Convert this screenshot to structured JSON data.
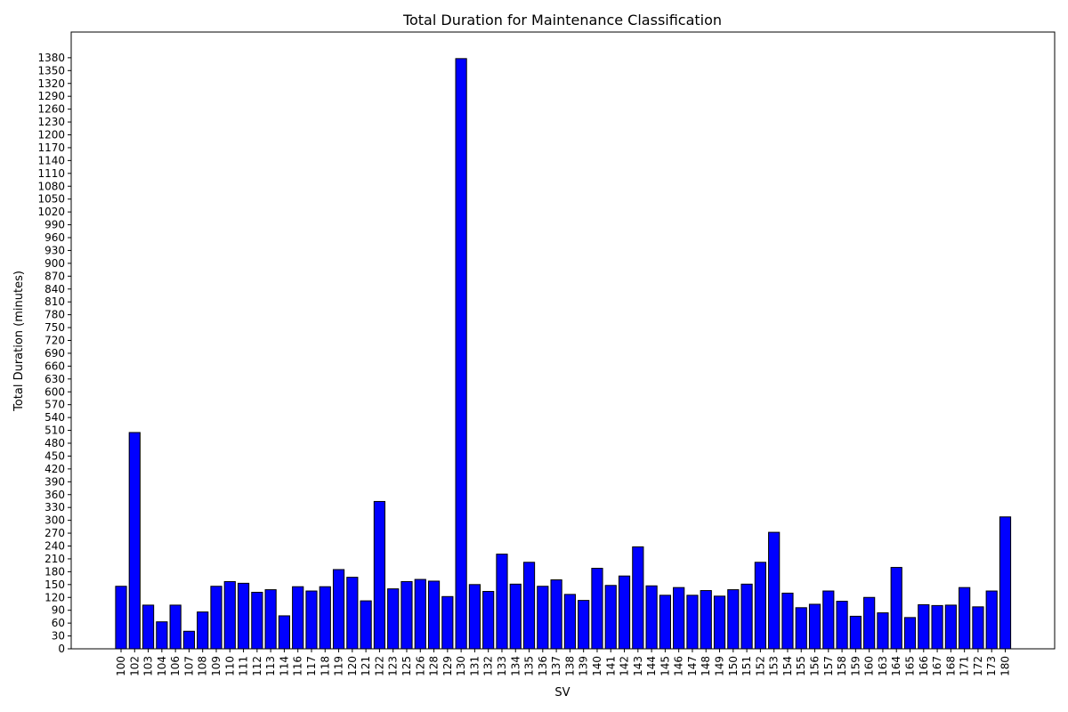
{
  "chart_data": {
    "type": "bar",
    "title": "Total Duration for Maintenance Classification",
    "xlabel": "SV",
    "ylabel": "Total Duration (minutes)",
    "ylim": [
      0,
      1440
    ],
    "y_tick_step": 30,
    "y_tick_max": 1380,
    "grid": false,
    "bar_color": "#0000ff",
    "bar_edge_color": "#000000",
    "categories": [
      "100",
      "102",
      "103",
      "104",
      "106",
      "107",
      "108",
      "109",
      "110",
      "111",
      "112",
      "113",
      "114",
      "116",
      "117",
      "118",
      "119",
      "120",
      "121",
      "122",
      "123",
      "125",
      "126",
      "128",
      "129",
      "130",
      "131",
      "132",
      "133",
      "134",
      "135",
      "136",
      "137",
      "138",
      "139",
      "140",
      "141",
      "142",
      "143",
      "144",
      "145",
      "146",
      "147",
      "148",
      "149",
      "150",
      "151",
      "152",
      "153",
      "154",
      "155",
      "156",
      "157",
      "158",
      "159",
      "160",
      "163",
      "164",
      "165",
      "166",
      "167",
      "168",
      "171",
      "172",
      "173",
      "180"
    ],
    "values": [
      146,
      505,
      102,
      63,
      102,
      41,
      86,
      146,
      157,
      153,
      132,
      138,
      77,
      145,
      135,
      145,
      185,
      167,
      112,
      344,
      140,
      157,
      162,
      158,
      122,
      1378,
      150,
      134,
      221,
      151,
      202,
      146,
      161,
      127,
      113,
      188,
      148,
      170,
      238,
      147,
      125,
      143,
      125,
      136,
      123,
      138,
      151,
      202,
      272,
      130,
      96,
      104,
      135,
      111,
      76,
      120,
      84,
      190,
      73,
      103,
      101,
      102,
      143,
      98,
      135,
      308
    ]
  }
}
